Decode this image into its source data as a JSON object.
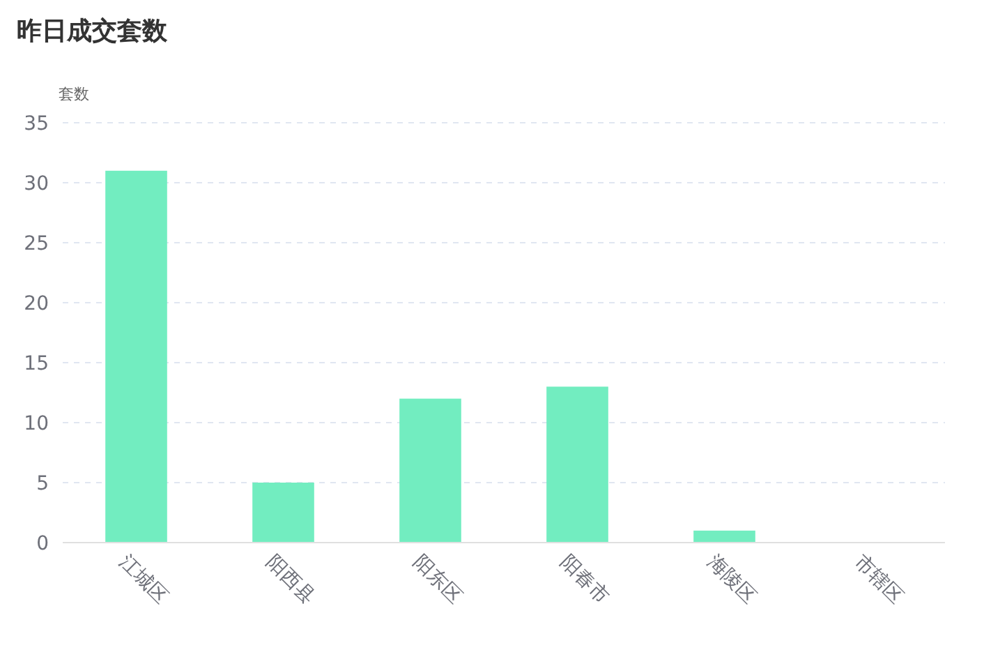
{
  "chart_data": {
    "type": "bar",
    "title": "昨日成交套数",
    "ylabel": "套数",
    "categories": [
      "江城区",
      "阳西县",
      "阳东区",
      "阳春市",
      "海陵区",
      "市辖区"
    ],
    "values": [
      31,
      5,
      12,
      13,
      1,
      0
    ],
    "color": "#72edc0",
    "ylim": [
      0,
      35
    ],
    "yticks": [
      0,
      5,
      10,
      15,
      20,
      25,
      30,
      35
    ],
    "grid": "y"
  }
}
